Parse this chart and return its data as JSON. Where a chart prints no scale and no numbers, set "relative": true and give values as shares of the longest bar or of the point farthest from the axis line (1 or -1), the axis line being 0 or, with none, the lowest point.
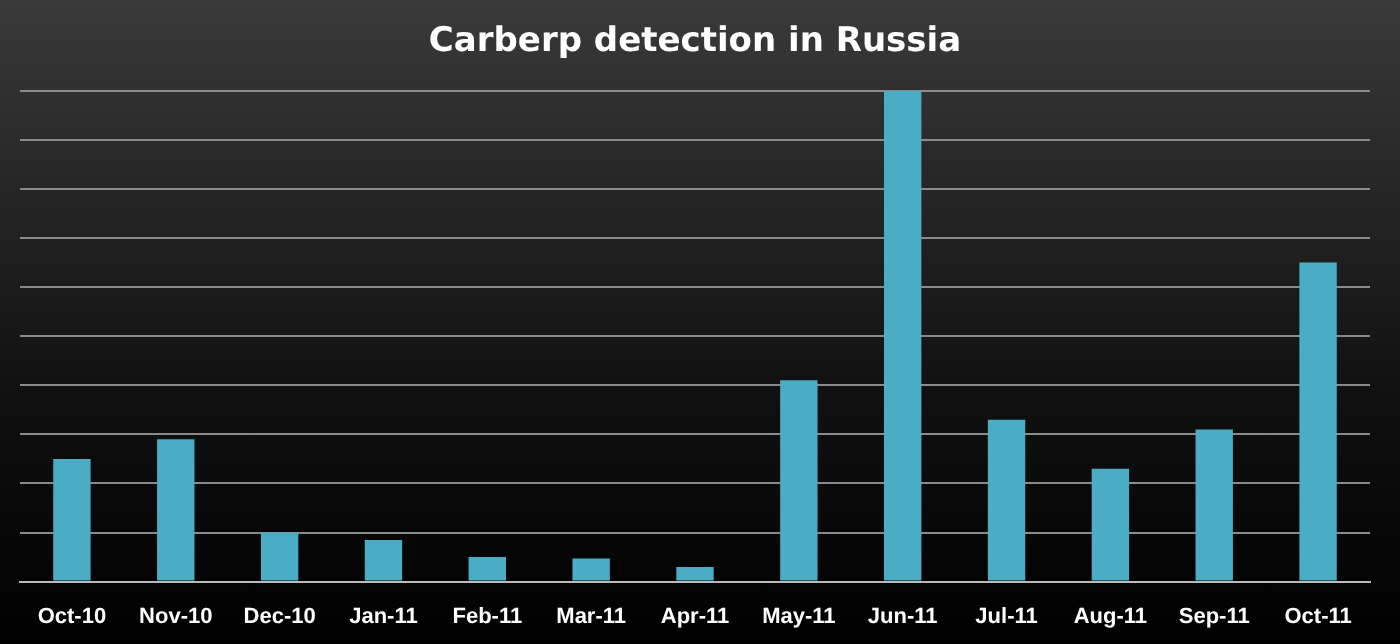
{
  "chart_data": {
    "type": "bar",
    "title": "Carberp detection in Russia",
    "categories": [
      "Oct-10",
      "Nov-10",
      "Dec-10",
      "Jan-11",
      "Feb-11",
      "Mar-11",
      "Apr-11",
      "May-11",
      "Jun-11",
      "Jul-11",
      "Aug-11",
      "Sep-11",
      "Oct-11"
    ],
    "values": [
      0.25,
      0.29,
      0.1,
      0.085,
      0.05,
      0.047,
      0.03,
      0.41,
      1,
      0.33,
      0.23,
      0.31,
      0.65
    ],
    "color": "#4bacc6",
    "relative": true,
    "grid": true
  }
}
